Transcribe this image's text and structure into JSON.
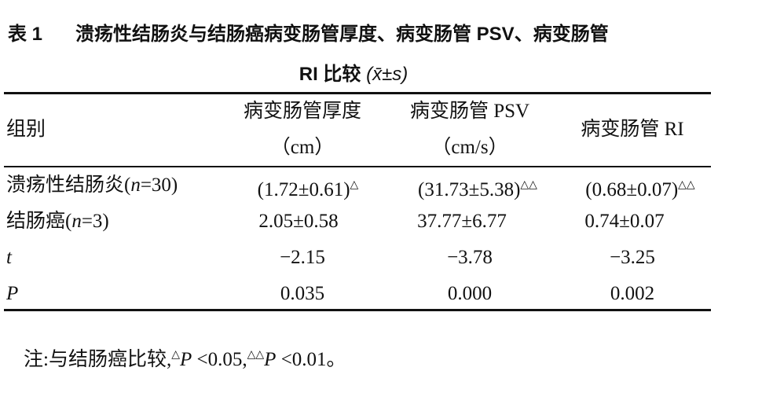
{
  "header": {
    "label": "表 1",
    "title_line1": "溃疡性结肠炎与结肠癌病变肠管厚度、病变肠管 PSV、病变肠管",
    "title_line2": "RI 比较",
    "title_stat": "(x̄±s)"
  },
  "table": {
    "columns": [
      "组别",
      "病变肠管厚度",
      "病变肠管 PSV",
      "病变肠管 RI"
    ],
    "units": [
      "（cm）",
      "（cm/s）"
    ],
    "rows": [
      {
        "group": [
          "溃疡性结肠炎(",
          "n",
          "=30)"
        ],
        "cells": [
          "(1.72±0.61)",
          "(31.73±5.38)",
          "(0.68±0.07)"
        ],
        "marks": [
          "△",
          "△△",
          "△△"
        ]
      },
      {
        "group": [
          "结肠癌(",
          "n",
          "=3)"
        ],
        "cells": [
          "2.05±0.58",
          "37.77±6.77",
          "0.74±0.07"
        ]
      },
      {
        "group": [
          "t"
        ],
        "cells": [
          "−2.15",
          "−3.78",
          "−3.25"
        ]
      },
      {
        "group": [
          "P"
        ],
        "cells": [
          "0.035",
          "0.000",
          "0.002"
        ]
      }
    ]
  },
  "note": {
    "prefix": "注:与结肠癌比较,",
    "mark1": "△",
    "p1": "P",
    "text1": " <0.05,",
    "mark2": "△△",
    "p2": "P",
    "text2": " <0.01。"
  }
}
